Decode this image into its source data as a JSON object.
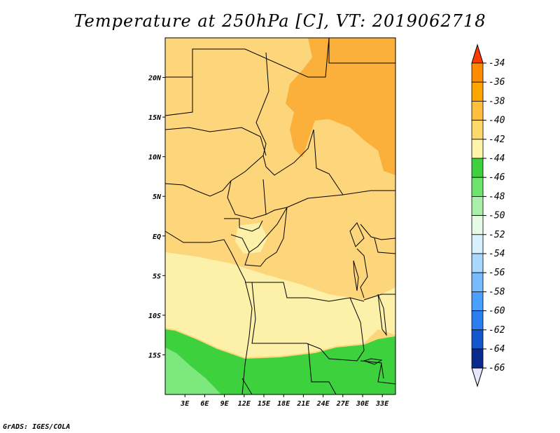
{
  "title": "Temperature at 250hPa [C], VT: 2019062718",
  "footer": "GrADS: IGES/COLA",
  "map": {
    "lon_range": [
      0,
      35
    ],
    "lat_range": [
      -20,
      25
    ],
    "x_ticks": [
      "3E",
      "6E",
      "9E",
      "12E",
      "15E",
      "18E",
      "21E",
      "24E",
      "27E",
      "30E",
      "33E"
    ],
    "y_ticks": [
      "20N",
      "15N",
      "10N",
      "5N",
      "EQ",
      "5S",
      "10S",
      "15S"
    ]
  },
  "colorbar": {
    "labels": [
      "-34",
      "-36",
      "-38",
      "-40",
      "-42",
      "-44",
      "-46",
      "-48",
      "-50",
      "-52",
      "-54",
      "-56",
      "-58",
      "-60",
      "-62",
      "-64",
      "-66"
    ],
    "colors": [
      "#ff5a00",
      "#ff8c00",
      "#ffa500",
      "#ffbe3c",
      "#fdd86a",
      "#fff5a8",
      "#3ed13e",
      "#6ee36e",
      "#a8f0a8",
      "#e6fbe6",
      "#d6f0ff",
      "#a8d8ff",
      "#78bcff",
      "#4aa0ff",
      "#2a7eef",
      "#1457cc",
      "#0a2a8c",
      "#00145a"
    ],
    "top_color": "#ff3c00",
    "bottom_color": "#e6e6ff"
  },
  "fields": {
    "orange": "#fbb03c",
    "light_orange": "#fdd57a",
    "pale_yellow": "#fdf0a8",
    "green": "#3ed13e",
    "light_green": "#7de87d"
  }
}
